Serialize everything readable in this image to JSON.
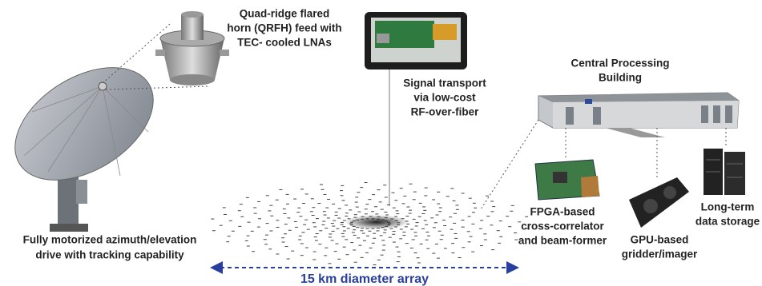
{
  "labels": {
    "feed": {
      "lines": [
        "Quad-ridge flared",
        "horn (QRFH) feed with",
        "TEC- cooled LNAs"
      ]
    },
    "signal": {
      "lines": [
        "Signal transport",
        "via low-cost",
        "RF-over-fiber"
      ]
    },
    "building": {
      "lines": [
        "Central Processing",
        "Building"
      ]
    },
    "fpga": {
      "lines": [
        "FPGA-based",
        "cross-correlator",
        "and beam-former"
      ]
    },
    "gpu": {
      "lines": [
        "GPU-based",
        "gridder/imager"
      ]
    },
    "storage": {
      "lines": [
        "Long-term",
        "data storage"
      ]
    },
    "drive": {
      "lines": [
        "Fully motorized azimuth/elevation",
        "drive with tracking capability"
      ]
    },
    "array": {
      "lines": [
        "15 km diameter array"
      ]
    }
  }
}
